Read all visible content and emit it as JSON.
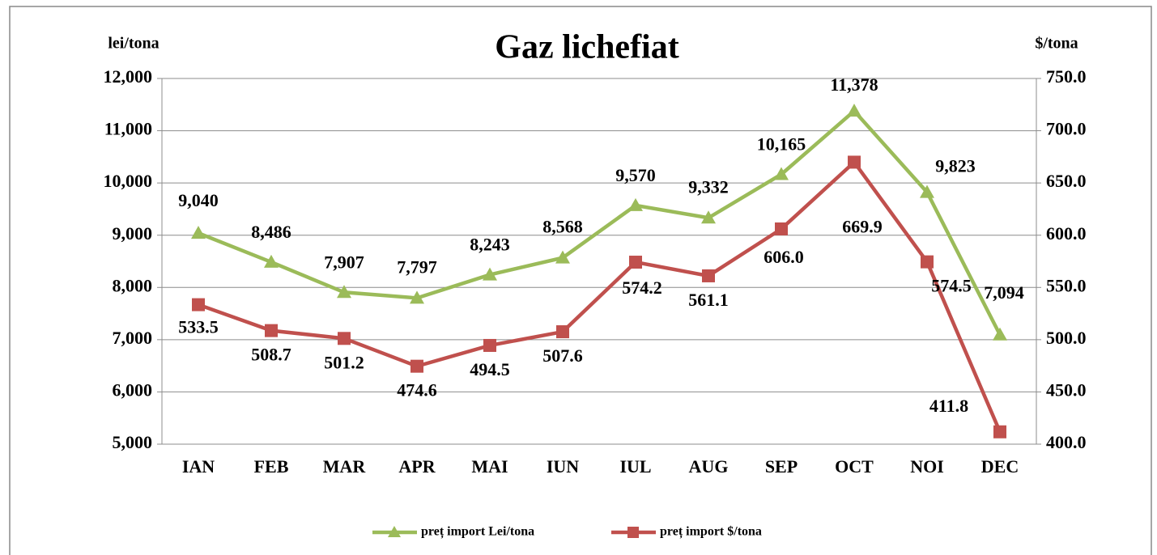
{
  "chart_data": {
    "type": "line",
    "title": "Gaz lichefiat",
    "y_label": "lei/tona",
    "y2_label": "$/tona",
    "categories": [
      "IAN",
      "FEB",
      "MAR",
      "APR",
      "MAI",
      "IUN",
      "IUL",
      "AUG",
      "SEP",
      "OCT",
      "NOI",
      "DEC"
    ],
    "series": [
      {
        "name": "preț import Lei/tona",
        "color": "#9bbb59",
        "marker": "triangle",
        "values": [
          9040,
          8486,
          7907,
          7797,
          8243,
          8568,
          9570,
          9332,
          10165,
          11378,
          9823,
          7094
        ],
        "value_labels": [
          "9,040",
          "8,486",
          "7,907",
          "7,797",
          "8,243",
          "8,568",
          "9,570",
          "9,332",
          "10,165",
          "11,378",
          "9,823",
          "7,094"
        ]
      },
      {
        "name": "preț import $/tona",
        "color": "#c0504d",
        "marker": "square",
        "axis": "y2",
        "values": [
          533.5,
          508.7,
          501.2,
          474.6,
          494.5,
          507.6,
          574.2,
          561.1,
          606.0,
          669.9,
          574.5,
          411.8
        ],
        "value_labels": [
          "533.5",
          "508.7",
          "501.2",
          "474.6",
          "494.5",
          "507.6",
          "574.2",
          "561.1",
          "606.0",
          "669.9",
          "574.5",
          "411.8"
        ]
      }
    ],
    "ylim": [
      5000,
      12000
    ],
    "yticks": [
      {
        "value": 5000,
        "label": "5,000"
      },
      {
        "value": 6000,
        "label": "6,000"
      },
      {
        "value": 7000,
        "label": "7,000"
      },
      {
        "value": 8000,
        "label": "8,000"
      },
      {
        "value": 9000,
        "label": "9,000"
      },
      {
        "value": 10000,
        "label": "10,000"
      },
      {
        "value": 11000,
        "label": "11,000"
      },
      {
        "value": 12000,
        "label": "12,000"
      }
    ],
    "y2lim": [
      400,
      750
    ],
    "y2ticks": [
      {
        "value": 400,
        "label": "400.0"
      },
      {
        "value": 450,
        "label": "450.0"
      },
      {
        "value": 500,
        "label": "500.0"
      },
      {
        "value": 550,
        "label": "550.0"
      },
      {
        "value": 600,
        "label": "600.0"
      },
      {
        "value": 650,
        "label": "650.0"
      },
      {
        "value": 700,
        "label": "700.0"
      },
      {
        "value": 750,
        "label": "750.0"
      }
    ],
    "grid": true,
    "legend": "bottom"
  }
}
